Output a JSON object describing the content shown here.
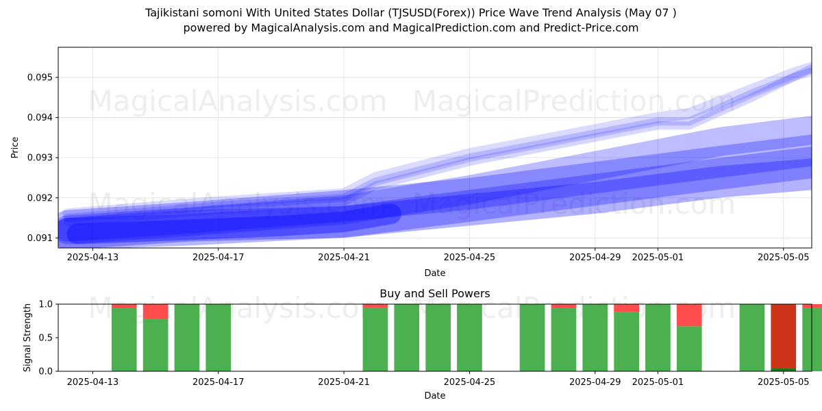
{
  "header": {
    "title_line1": "Tajikistani somoni With United States Dollar (TJSUSD(Forex)) Price Wave Trend Analysis (May 07 )",
    "title_line2": "powered by MagicalAnalysis.com and MagicalPrediction.com and Predict-Price.com"
  },
  "watermarks": [
    "MagicalAnalysis.com",
    "MagicalPrediction.com"
  ],
  "colors": {
    "wave": "#0000ff",
    "buy": "#4caf50",
    "sell": "#ff4d4d",
    "buy_strong": "#1a7a1a",
    "sell_strong": "#cc3318"
  },
  "chart_data": [
    {
      "type": "area",
      "title": "",
      "xlabel": "Date",
      "ylabel": "Price",
      "ylim": [
        0.09075,
        0.09575
      ],
      "xlim": [
        -1.1,
        22.9
      ],
      "x_origin_date": "2025-04-13",
      "xticks": [
        {
          "day": 0,
          "label": "2025-04-13"
        },
        {
          "day": 4,
          "label": "2025-04-17"
        },
        {
          "day": 8,
          "label": "2025-04-21"
        },
        {
          "day": 12,
          "label": "2025-04-25"
        },
        {
          "day": 16,
          "label": "2025-04-29"
        },
        {
          "day": 18,
          "label": "2025-05-01"
        },
        {
          "day": 22,
          "label": "2025-05-05"
        }
      ],
      "yticks": [
        {
          "value": 0.091,
          "label": "0.091"
        },
        {
          "value": 0.092,
          "label": "0.092"
        },
        {
          "value": 0.093,
          "label": "0.093"
        },
        {
          "value": 0.094,
          "label": "0.094"
        },
        {
          "value": 0.095,
          "label": "0.095"
        }
      ],
      "grid": true,
      "series": [
        {
          "name": "wave-upper",
          "x": [
            -0.8,
            4,
            8,
            9,
            12,
            16,
            18,
            19,
            21,
            22.3,
            23.1
          ],
          "values": [
            0.0916,
            0.0919,
            0.0921,
            0.0925,
            0.0931,
            0.0937,
            0.094,
            0.0941,
            0.0947,
            0.0951,
            0.0953
          ],
          "width": 16,
          "opacity": 0.14
        },
        {
          "name": "wave-mid",
          "x": [
            -0.8,
            4,
            8,
            9,
            12,
            16,
            18,
            19,
            21,
            22.3,
            23.1
          ],
          "values": [
            0.0915,
            0.0918,
            0.092,
            0.0924,
            0.093,
            0.0936,
            0.0939,
            0.0939,
            0.0946,
            0.095,
            0.0953
          ],
          "width": 12,
          "opacity": 0.16
        },
        {
          "name": "wave-lower",
          "x": [
            -0.8,
            4,
            8,
            9,
            12,
            16,
            18,
            19,
            21,
            22.3,
            23.1
          ],
          "values": [
            0.0914,
            0.0917,
            0.0919,
            0.0923,
            0.0929,
            0.0935,
            0.0938,
            0.0938,
            0.0945,
            0.095,
            0.0952
          ],
          "width": 12,
          "opacity": 0.16
        },
        {
          "name": "trend-a",
          "x": [
            -0.8,
            3,
            8,
            12,
            16,
            20,
            23.1
          ],
          "values": [
            0.0912,
            0.0914,
            0.0917,
            0.0922,
            0.0928,
            0.0934,
            0.0937
          ],
          "width": 42,
          "opacity": 0.26
        },
        {
          "name": "trend-b",
          "x": [
            -0.8,
            3,
            8,
            12,
            16,
            20,
            23.1
          ],
          "values": [
            0.0913,
            0.0915,
            0.0918,
            0.0921,
            0.0925,
            0.0929,
            0.0932
          ],
          "width": 46,
          "opacity": 0.28
        },
        {
          "name": "trend-c",
          "x": [
            -0.8,
            3,
            8,
            12,
            16,
            20,
            23.1
          ],
          "values": [
            0.0911,
            0.0912,
            0.0914,
            0.0918,
            0.0922,
            0.0926,
            0.0929
          ],
          "width": 46,
          "opacity": 0.28
        },
        {
          "name": "trend-d",
          "x": [
            -0.8,
            3,
            8,
            12,
            16,
            20,
            23.1
          ],
          "values": [
            0.0911,
            0.0913,
            0.0914,
            0.0917,
            0.092,
            0.0924,
            0.0926
          ],
          "width": 46,
          "opacity": 0.3
        },
        {
          "name": "core",
          "x": [
            -0.5,
            3,
            6,
            8,
            9.5
          ],
          "values": [
            0.0911,
            0.0912,
            0.0913,
            0.0914,
            0.0916
          ],
          "width": 30,
          "opacity": 0.38
        }
      ]
    },
    {
      "type": "bar",
      "title": "Buy and Sell Powers",
      "xlabel": "Date",
      "ylabel": "Signal Strength",
      "ylim": [
        0,
        1.0
      ],
      "xlim": [
        -1.1,
        22.9
      ],
      "xticks": [
        {
          "day": 0,
          "label": "2025-04-13"
        },
        {
          "day": 4,
          "label": "2025-04-17"
        },
        {
          "day": 8,
          "label": "2025-04-21"
        },
        {
          "day": 12,
          "label": "2025-04-25"
        },
        {
          "day": 16,
          "label": "2025-04-29"
        },
        {
          "day": 18,
          "label": "2025-05-01"
        },
        {
          "day": 22,
          "label": "2025-05-05"
        }
      ],
      "yticks": [
        {
          "value": 0.0,
          "label": "0.0"
        },
        {
          "value": 0.5,
          "label": "0.5"
        },
        {
          "value": 1.0,
          "label": "1.0"
        }
      ],
      "days": [
        1,
        2,
        3,
        4,
        9,
        10,
        11,
        12,
        14,
        15,
        16,
        17,
        18,
        19,
        21,
        22,
        23
      ],
      "series": [
        {
          "name": "Buy",
          "values": [
            0.94,
            0.78,
            1.0,
            1.0,
            0.95,
            1.0,
            1.0,
            1.0,
            1.0,
            0.94,
            1.0,
            0.88,
            1.0,
            0.67,
            1.0,
            0.05,
            0.94
          ]
        },
        {
          "name": "Sell",
          "values": [
            0.06,
            0.22,
            0.0,
            0.0,
            0.05,
            0.0,
            0.0,
            0.0,
            0.0,
            0.06,
            0.0,
            0.12,
            0.0,
            0.33,
            0.0,
            0.95,
            0.06
          ]
        }
      ]
    }
  ]
}
